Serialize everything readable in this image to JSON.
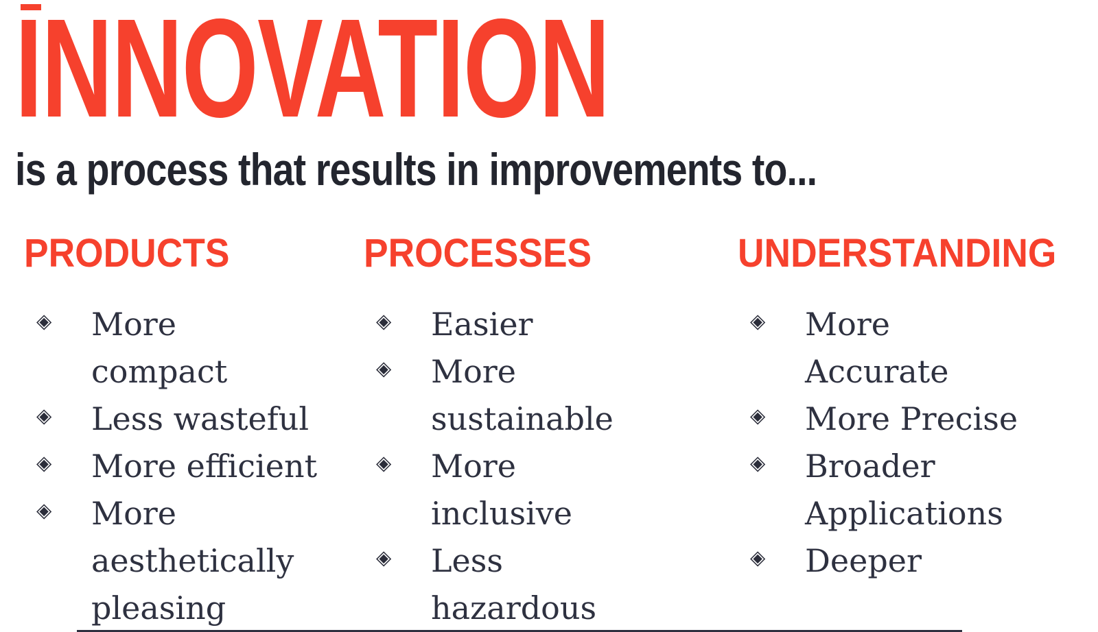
{
  "page": {
    "title": "INNOVATION",
    "subtitle": "is a process that results in improvements to...",
    "accent_color": "#f6412d",
    "text_color": "#23252e",
    "list_text_color": "#2e3140",
    "bullet_glyph": "◈"
  },
  "columns": [
    {
      "heading": "PRODUCTS",
      "items": [
        "More compact",
        "Less wasteful",
        "More efficient",
        "More aesthetically pleasing"
      ]
    },
    {
      "heading": "PROCESSES",
      "items": [
        "Easier",
        "More sustainable",
        "More inclusive",
        "Less hazardous"
      ]
    },
    {
      "heading": "UNDERSTANDING",
      "items": [
        "More Accurate",
        "More Precise",
        "Broader Applications",
        "Deeper"
      ]
    }
  ]
}
